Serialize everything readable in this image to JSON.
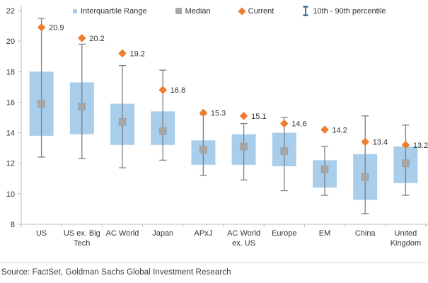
{
  "colors": {
    "iqr_fill": "#A9CEEC",
    "median_fill": "#A6A6A6",
    "median_stroke": "#999999",
    "current_fill": "#ED7D31",
    "whisker_stroke": "#7F7F7F",
    "percentile_icon": "#1F4E79",
    "axis_line": "#BFBFBF",
    "text": "#333333"
  },
  "chart_data": {
    "type": "boxplot",
    "title": "",
    "xlabel": "",
    "ylabel": "",
    "ylim": [
      8,
      22
    ],
    "yticks": [
      8,
      10,
      12,
      14,
      16,
      18,
      20,
      22
    ],
    "grid": false,
    "legend_position": "top",
    "legend": [
      {
        "label": "Interquartile Range",
        "marker": "square-small",
        "color_key": "iqr_fill"
      },
      {
        "label": "Median",
        "marker": "square",
        "color_key": "median_fill"
      },
      {
        "label": "Current",
        "marker": "diamond",
        "color_key": "current_fill"
      },
      {
        "label": "10th - 90th percentile",
        "marker": "ibeam",
        "color_key": "percentile_icon"
      }
    ],
    "categories": [
      {
        "label": "US",
        "label_lines": [
          "US"
        ],
        "current": 20.9,
        "p90": 21.5,
        "q3": 18.0,
        "median": 15.9,
        "q1": 13.8,
        "p10": 12.4
      },
      {
        "label": "US ex. Big Tech",
        "label_lines": [
          "US ex. Big",
          "Tech"
        ],
        "current": 20.2,
        "p90": 19.8,
        "q3": 17.3,
        "median": 15.7,
        "q1": 13.9,
        "p10": 12.3
      },
      {
        "label": "AC World",
        "label_lines": [
          "AC World"
        ],
        "current": 19.2,
        "p90": 18.4,
        "q3": 15.9,
        "median": 14.7,
        "q1": 13.2,
        "p10": 11.7
      },
      {
        "label": "Japan",
        "label_lines": [
          "Japan"
        ],
        "current": 16.8,
        "p90": 18.1,
        "q3": 15.4,
        "median": 14.1,
        "q1": 13.2,
        "p10": 12.2
      },
      {
        "label": "APxJ",
        "label_lines": [
          "APxJ"
        ],
        "current": 15.3,
        "p90": 15.2,
        "q3": 13.5,
        "median": 12.9,
        "q1": 11.9,
        "p10": 11.2
      },
      {
        "label": "AC World ex. US",
        "label_lines": [
          "AC World",
          "ex. US"
        ],
        "current": 15.1,
        "p90": 14.6,
        "q3": 13.9,
        "median": 13.1,
        "q1": 11.9,
        "p10": 10.9
      },
      {
        "label": "Europe",
        "label_lines": [
          "Europe"
        ],
        "current": 14.6,
        "p90": 15.0,
        "q3": 14.0,
        "median": 12.8,
        "q1": 11.8,
        "p10": 10.2
      },
      {
        "label": "EM",
        "label_lines": [
          "EM"
        ],
        "current": 14.2,
        "p90": 13.1,
        "q3": 12.2,
        "median": 11.6,
        "q1": 10.4,
        "p10": 9.9
      },
      {
        "label": "China",
        "label_lines": [
          "China"
        ],
        "current": 13.4,
        "p90": 15.1,
        "q3": 12.6,
        "median": 11.1,
        "q1": 9.6,
        "p10": 8.7
      },
      {
        "label": "United Kingdom",
        "label_lines": [
          "United",
          "Kingdom"
        ],
        "current": 13.2,
        "p90": 14.5,
        "q3": 13.1,
        "median": 12.0,
        "q1": 10.7,
        "p10": 9.9
      }
    ]
  },
  "source": {
    "text": "Source: FactSet, Goldman Sachs Global Investment Research"
  }
}
